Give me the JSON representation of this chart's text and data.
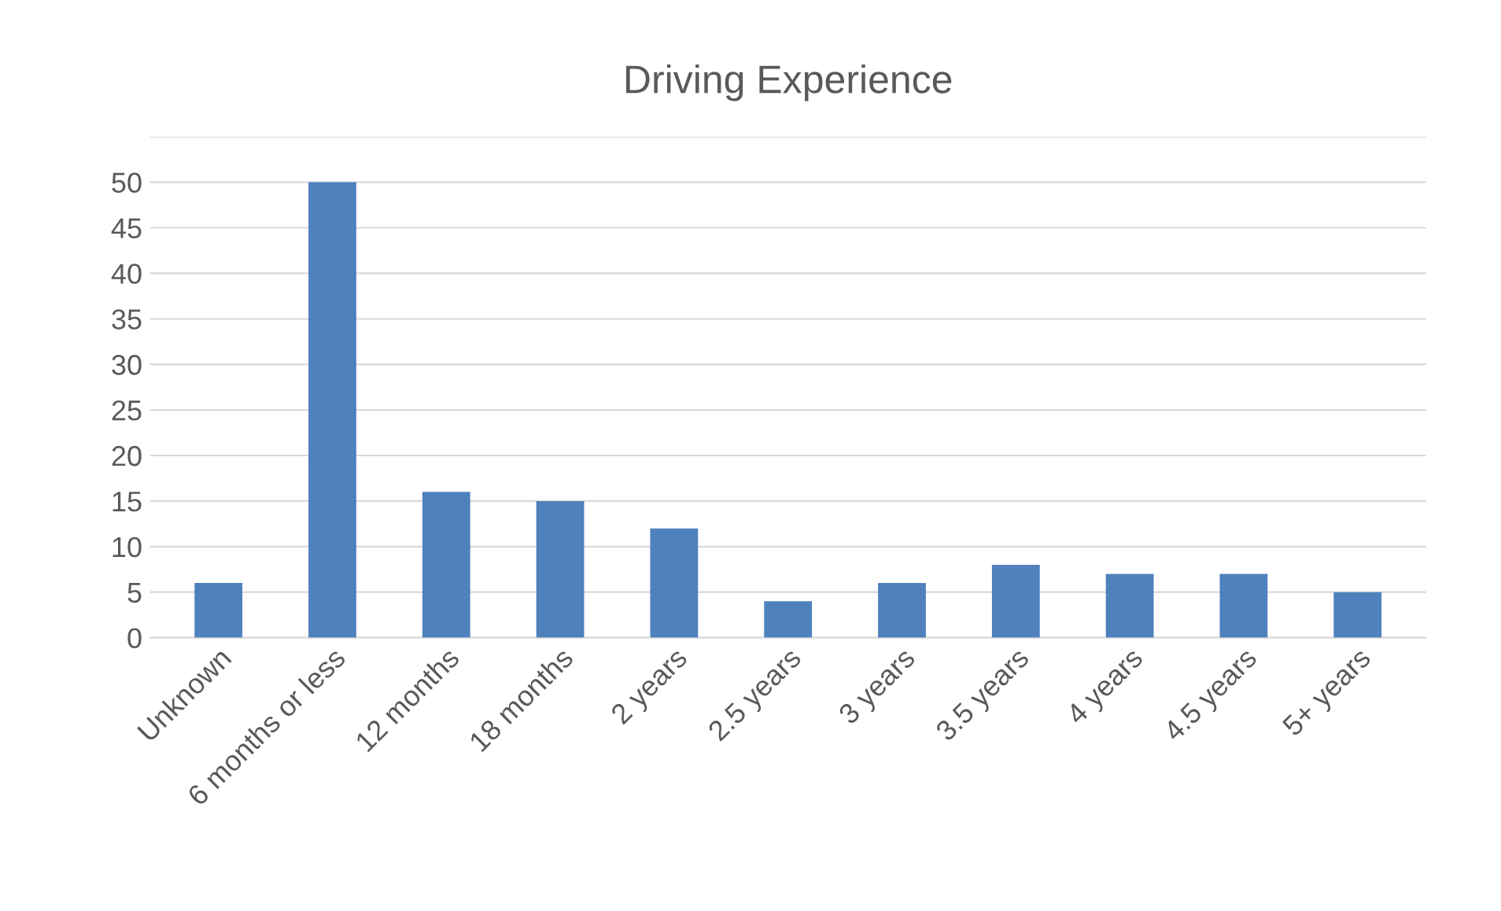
{
  "chart_data": {
    "type": "bar",
    "title": "Driving Experience",
    "categories": [
      "Unknown",
      "6 months or less",
      "12 months",
      "18 months",
      "2 years",
      "2.5 years",
      "3 years",
      "3.5 years",
      "4 years",
      "4.5 years",
      "5+ years"
    ],
    "values": [
      6,
      50,
      16,
      15,
      12,
      4,
      6,
      8,
      7,
      7,
      5
    ],
    "color": "#4f81bd",
    "ylim": [
      0,
      55
    ],
    "yticks": [
      0,
      5,
      10,
      15,
      20,
      25,
      30,
      35,
      40,
      45,
      50,
      {
        "value": 55,
        "label": null
      }
    ],
    "grid": "y"
  }
}
